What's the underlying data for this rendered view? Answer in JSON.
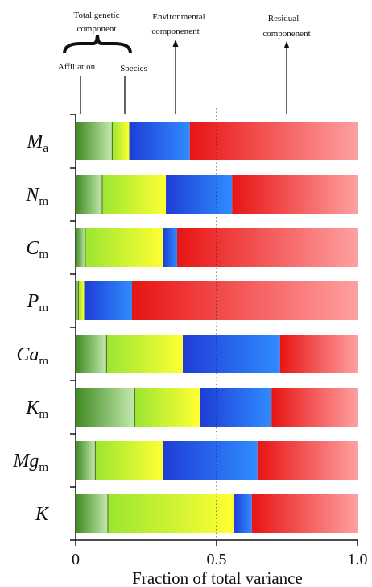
{
  "chart_data": {
    "type": "bar",
    "orientation": "horizontal",
    "stacked": true,
    "xlabel": "Fraction of total variance",
    "xlim": [
      0,
      1.0
    ],
    "xticks": [
      "0",
      "0.5",
      "1.0"
    ],
    "grid": "vertical dotted at 0.5",
    "categories": [
      {
        "main": "M",
        "sub": "a"
      },
      {
        "main": "N",
        "sub": "m"
      },
      {
        "main": "C",
        "sub": "m"
      },
      {
        "main": "P",
        "sub": "m"
      },
      {
        "main": "Ca",
        "sub": "m"
      },
      {
        "main": "K",
        "sub": "m"
      },
      {
        "main": "Mg",
        "sub": "m"
      },
      {
        "main": "K",
        "sub": ""
      }
    ],
    "series": [
      {
        "name": "Affiliation",
        "values": [
          0.13,
          0.095,
          0.035,
          0.01,
          0.11,
          0.21,
          0.07,
          0.115
        ]
      },
      {
        "name": "Species",
        "values": [
          0.06,
          0.225,
          0.275,
          0.02,
          0.27,
          0.23,
          0.24,
          0.445
        ]
      },
      {
        "name": "Environmental componenent",
        "values": [
          0.215,
          0.235,
          0.05,
          0.17,
          0.345,
          0.255,
          0.335,
          0.065
        ]
      },
      {
        "name": "Residual componenent",
        "values": [
          0.595,
          0.445,
          0.64,
          0.8,
          0.275,
          0.305,
          0.355,
          0.375
        ]
      }
    ],
    "annotations": {
      "total_genetic": [
        "Total genetic",
        "component"
      ],
      "affiliation": "Affiliation",
      "species": "Species",
      "environmental": [
        "Environmental",
        "componenent"
      ],
      "residual": [
        "Residual",
        "componenent"
      ]
    },
    "colors": {
      "affiliation": [
        "#3f8a22",
        "#c4eaae"
      ],
      "species": [
        "#9be632",
        "#ffff33"
      ],
      "environmental": [
        "#1f3dd6",
        "#2f8cff"
      ],
      "residual": [
        "#e81414",
        "#ffa0a0"
      ]
    }
  }
}
